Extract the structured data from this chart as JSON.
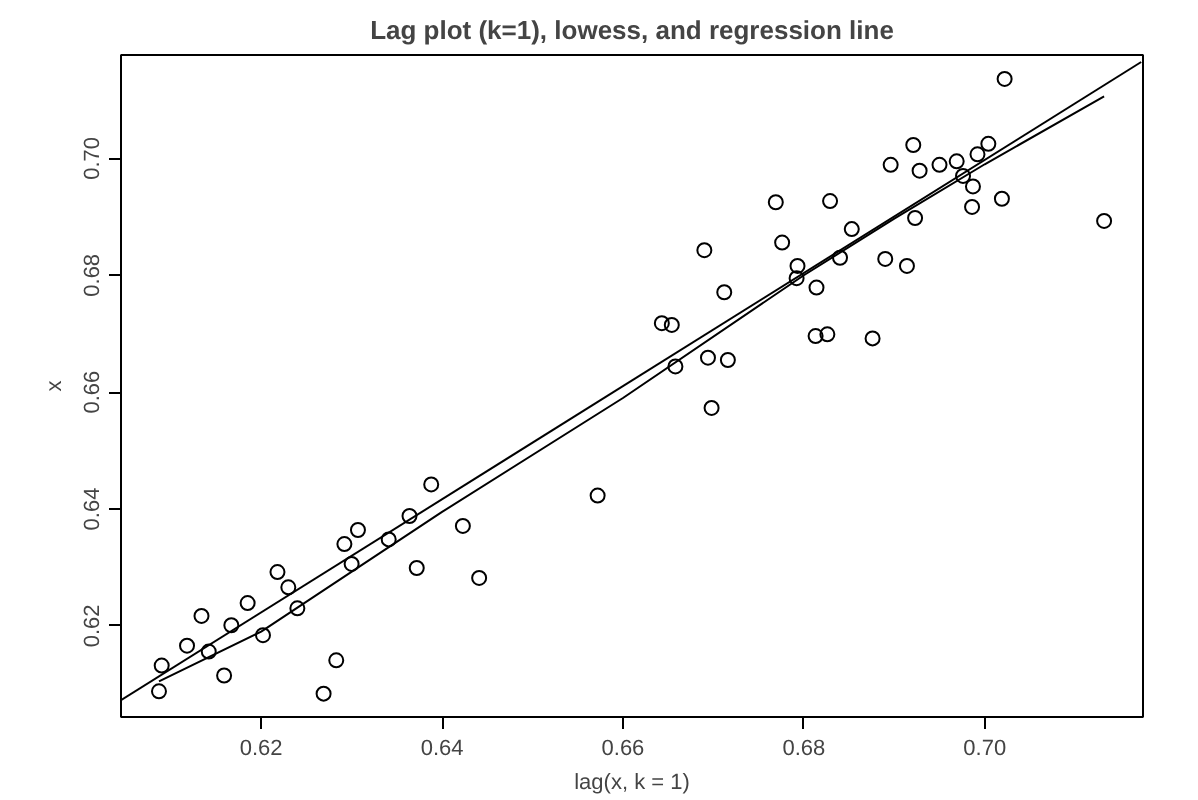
{
  "chart_data": {
    "type": "scatter",
    "title": "Lag plot (k=1), lowess, and regression line",
    "xlabel": "lag(x, k = 1)",
    "ylabel": "x",
    "xlim": [
      0.6045,
      0.7175
    ],
    "ylim": [
      0.6044,
      0.7177
    ],
    "xticks": [
      0.62,
      0.64,
      0.66,
      0.68,
      {
        "value": 0.7,
        "label": "0.70"
      }
    ],
    "yticks": [
      0.62,
      0.64,
      0.66,
      0.68,
      {
        "value": 0.7,
        "label": "0.70"
      }
    ],
    "grid": false,
    "series": [
      {
        "marker": "circle",
        "color": "#000000",
        "x": [
          0.609,
          0.6087,
          0.6118,
          0.6134,
          0.6142,
          0.6159,
          0.6167,
          0.6185,
          0.6202,
          0.6218,
          0.623,
          0.624,
          0.6269,
          0.6283,
          0.6292,
          0.63,
          0.6307,
          0.6341,
          0.6364,
          0.6372,
          0.6388,
          0.6423,
          0.6441,
          0.6572,
          0.6643,
          0.6654,
          0.6658,
          0.669,
          0.6694,
          0.6698,
          0.6712,
          0.6716,
          0.6769,
          0.6776,
          0.6793,
          0.6792,
          0.6814,
          0.6813,
          0.6826,
          0.6829,
          0.684,
          0.6853,
          0.6876,
          0.689,
          0.6896,
          0.6914,
          0.6921,
          0.6923,
          0.6928,
          0.695,
          0.6969,
          0.6976,
          0.6987,
          0.6986,
          0.6992,
          0.7004,
          0.7019,
          0.7022,
          0.7132
        ],
        "values": [
          0.6132,
          0.6088,
          0.6166,
          0.6217,
          0.6156,
          0.6115,
          0.6201,
          0.6239,
          0.6184,
          0.6292,
          0.6266,
          0.623,
          0.6084,
          0.6141,
          0.634,
          0.6306,
          0.6364,
          0.6348,
          0.6388,
          0.6299,
          0.6442,
          0.6371,
          0.6282,
          0.6423,
          0.6718,
          0.6715,
          0.6644,
          0.6843,
          0.6659,
          0.6573,
          0.6771,
          0.6655,
          0.6925,
          0.6856,
          0.6816,
          0.6795,
          0.6779,
          0.6696,
          0.6699,
          0.6927,
          0.683,
          0.6879,
          0.6692,
          0.6828,
          0.6989,
          0.6816,
          0.7023,
          0.6898,
          0.6979,
          0.6989,
          0.6995,
          0.697,
          0.6952,
          0.6917,
          0.7007,
          0.7025,
          0.6931,
          0.7136,
          0.6893
        ]
      },
      {
        "type": "line",
        "marker": "none",
        "line_style": "solid",
        "color": "#000000",
        "x": [
          0.6087,
          0.62,
          0.64,
          0.66,
          0.68,
          0.69,
          0.7,
          0.7132
        ],
        "values": [
          0.6105,
          0.619,
          0.6395,
          0.659,
          0.68,
          0.6897,
          0.699,
          0.7106
        ]
      },
      {
        "type": "line",
        "marker": "none",
        "line_style": "solid",
        "color": "#000000",
        "x": [
          0.6045,
          0.7173
        ],
        "values": [
          0.6073,
          0.7165
        ]
      }
    ]
  }
}
